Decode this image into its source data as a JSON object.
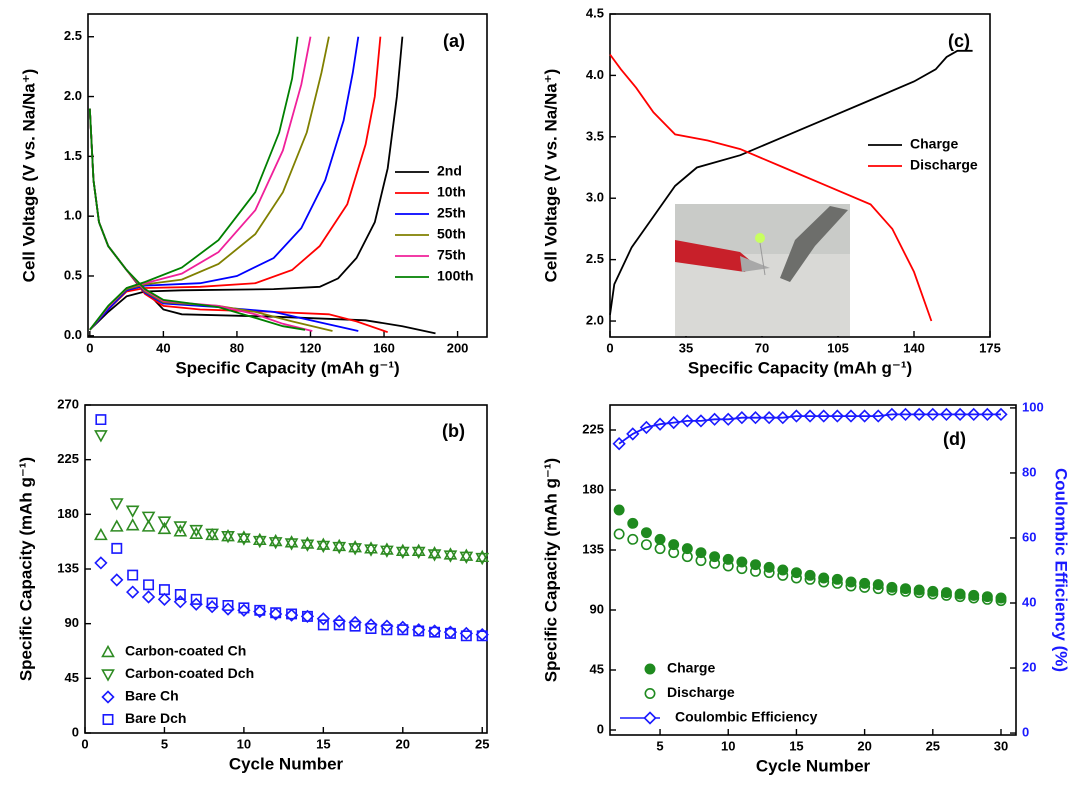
{
  "chart_data": [
    {
      "type": "line",
      "annotation": "(a)",
      "x_label": "Specific Capacity (mAh g⁻¹)",
      "y_label": "Cell Voltage (V vs. Na/Na⁺)",
      "xlim": [
        -1,
        216
      ],
      "ylim": [
        -0.01,
        2.69
      ],
      "xticks": [
        0,
        40,
        80,
        120,
        160,
        200
      ],
      "yticks": [
        {
          "value": 0,
          "label": "0.0"
        },
        0.5,
        {
          "value": 1,
          "label": "1.0"
        },
        1.5,
        {
          "value": 2,
          "label": "2.0"
        },
        2.5
      ],
      "legend": "right",
      "series": [
        {
          "name": "2nd",
          "color": "#000000",
          "x": [
            0,
            2,
            5,
            10,
            20,
            30,
            40,
            50,
            100,
            150,
            170,
            188,
            null,
            0,
            10,
            20,
            30,
            50,
            100,
            125,
            135,
            145,
            155,
            162,
            167,
            170
          ],
          "values": [
            1.9,
            1.3,
            0.95,
            0.75,
            0.55,
            0.38,
            0.22,
            0.18,
            0.16,
            0.13,
            0.08,
            0.02,
            null,
            0.05,
            0.2,
            0.33,
            0.37,
            0.38,
            0.39,
            0.41,
            0.48,
            0.65,
            0.95,
            1.4,
            2.0,
            2.5
          ]
        },
        {
          "name": "10th",
          "color": "#ff0000",
          "x": [
            0,
            2,
            5,
            10,
            20,
            30,
            40,
            60,
            100,
            130,
            145,
            162,
            null,
            0,
            10,
            20,
            30,
            60,
            90,
            110,
            125,
            140,
            150,
            155,
            158
          ],
          "values": [
            1.9,
            1.3,
            0.95,
            0.75,
            0.55,
            0.35,
            0.25,
            0.22,
            0.2,
            0.18,
            0.12,
            0.03,
            null,
            0.05,
            0.22,
            0.37,
            0.4,
            0.41,
            0.44,
            0.55,
            0.75,
            1.1,
            1.6,
            2.0,
            2.5
          ]
        },
        {
          "name": "25th",
          "color": "#0000ff",
          "x": [
            0,
            2,
            5,
            10,
            20,
            30,
            40,
            70,
            100,
            120,
            146,
            null,
            0,
            10,
            20,
            30,
            60,
            80,
            100,
            115,
            128,
            138,
            143,
            146
          ],
          "values": [
            1.9,
            1.3,
            0.95,
            0.75,
            0.55,
            0.36,
            0.27,
            0.24,
            0.2,
            0.13,
            0.04,
            null,
            0.05,
            0.22,
            0.38,
            0.42,
            0.44,
            0.5,
            0.65,
            0.9,
            1.3,
            1.8,
            2.2,
            2.5
          ]
        },
        {
          "name": "50th",
          "color": "#808000",
          "x": [
            0,
            2,
            5,
            10,
            20,
            30,
            40,
            70,
            90,
            110,
            132,
            null,
            0,
            10,
            20,
            30,
            50,
            70,
            90,
            105,
            118,
            126,
            130
          ],
          "values": [
            1.9,
            1.3,
            0.95,
            0.75,
            0.55,
            0.37,
            0.28,
            0.25,
            0.2,
            0.12,
            0.04,
            null,
            0.05,
            0.24,
            0.39,
            0.43,
            0.47,
            0.6,
            0.85,
            1.2,
            1.7,
            2.2,
            2.5
          ]
        },
        {
          "name": "75th",
          "color": "#f0209a",
          "x": [
            0,
            2,
            5,
            10,
            20,
            30,
            40,
            70,
            90,
            105,
            121,
            null,
            0,
            10,
            20,
            30,
            50,
            70,
            90,
            105,
            115,
            120
          ],
          "values": [
            1.9,
            1.3,
            0.95,
            0.75,
            0.55,
            0.38,
            0.29,
            0.25,
            0.18,
            0.1,
            0.04,
            null,
            0.05,
            0.24,
            0.4,
            0.44,
            0.52,
            0.7,
            1.05,
            1.55,
            2.1,
            2.5
          ]
        },
        {
          "name": "100th",
          "color": "#008000",
          "x": [
            0,
            2,
            5,
            10,
            20,
            30,
            40,
            70,
            90,
            105,
            117,
            null,
            0,
            10,
            20,
            30,
            50,
            70,
            90,
            103,
            110,
            113
          ],
          "values": [
            1.9,
            1.3,
            0.95,
            0.75,
            0.55,
            0.39,
            0.3,
            0.24,
            0.15,
            0.08,
            0.05,
            null,
            0.05,
            0.25,
            0.4,
            0.45,
            0.57,
            0.8,
            1.2,
            1.7,
            2.15,
            2.5
          ]
        }
      ]
    },
    {
      "type": "line",
      "annotation": "(c)",
      "x_label": "Specific Capacity (mAh g⁻¹)",
      "y_label": "Cell Voltage (V vs. Na/Na⁺)",
      "xlim": [
        0,
        175
      ],
      "ylim": [
        1.87,
        4.5
      ],
      "xticks": [
        0,
        35,
        70,
        105,
        140,
        175
      ],
      "yticks": [
        {
          "value": 2,
          "label": "2.0"
        },
        2.5,
        {
          "value": 3,
          "label": "3.0"
        },
        3.5,
        {
          "value": 4,
          "label": "4.0"
        },
        4.5
      ],
      "legend": "right",
      "series": [
        {
          "name": "Charge",
          "color": "#000000",
          "x": [
            0,
            2,
            10,
            20,
            30,
            40,
            60,
            80,
            100,
            120,
            140,
            150,
            155,
            160,
            167
          ],
          "values": [
            2.05,
            2.3,
            2.6,
            2.85,
            3.1,
            3.25,
            3.35,
            3.5,
            3.65,
            3.8,
            3.95,
            4.05,
            4.15,
            4.2,
            4.2
          ]
        },
        {
          "name": "Discharge",
          "color": "#ff0000",
          "x": [
            0,
            5,
            12,
            20,
            30,
            45,
            60,
            80,
            100,
            120,
            130,
            140,
            148
          ],
          "values": [
            4.17,
            4.05,
            3.9,
            3.7,
            3.52,
            3.47,
            3.4,
            3.25,
            3.1,
            2.95,
            2.75,
            2.4,
            2.0
          ]
        }
      ]
    },
    {
      "type": "scatter",
      "annotation": "(b)",
      "x_label": "Cycle Number",
      "y_label": "Specific Capacity (mAh g⁻¹)",
      "xlim": [
        0,
        25.3
      ],
      "ylim": [
        0,
        270
      ],
      "xticks": [
        0,
        5,
        10,
        15,
        20,
        25
      ],
      "yticks": [
        0,
        45,
        90,
        135,
        180,
        225,
        270
      ],
      "legend": "lower left",
      "x": [
        1,
        2,
        3,
        4,
        5,
        6,
        7,
        8,
        9,
        10,
        11,
        12,
        13,
        14,
        15,
        16,
        17,
        18,
        19,
        20,
        21,
        22,
        23,
        24,
        25
      ],
      "series": [
        {
          "name": "Carbon-coated Ch",
          "color": "#2e8b22",
          "marker": "triangle-up",
          "filled": false,
          "values": [
            163,
            170,
            171,
            170,
            168,
            166,
            164,
            163,
            162,
            161,
            159,
            158,
            157,
            156,
            155,
            154,
            153,
            152,
            151,
            150,
            150,
            148,
            147,
            146,
            145
          ]
        },
        {
          "name": "Carbon-coated Dch",
          "color": "#2e8b22",
          "marker": "triangle-down",
          "filled": false,
          "values": [
            245,
            189,
            183,
            178,
            174,
            170,
            167,
            164,
            162,
            160,
            158,
            157,
            156,
            155,
            154,
            153,
            152,
            151,
            150,
            149,
            149,
            147,
            146,
            145,
            144
          ]
        },
        {
          "name": "Bare Ch",
          "color": "#1a1aff",
          "marker": "diamond",
          "filled": false,
          "values": [
            140,
            126,
            116,
            112,
            110,
            108,
            106,
            104,
            102,
            101,
            100,
            98,
            97,
            96,
            94,
            92,
            91,
            89,
            88,
            87,
            85,
            84,
            83,
            82,
            81
          ]
        },
        {
          "name": "Bare Dch",
          "color": "#1a1aff",
          "marker": "square",
          "filled": false,
          "values": [
            258,
            152,
            130,
            122,
            118,
            114,
            110,
            107,
            105,
            103,
            101,
            99,
            98,
            96,
            89,
            89,
            88,
            86,
            85,
            85,
            84,
            83,
            82,
            80,
            80
          ]
        }
      ]
    },
    {
      "type": "scatter",
      "annotation": "(d)",
      "x_label": "Cycle Number",
      "y_label": "Specific Capacity (mAh g⁻¹)",
      "y2_label": "Coulombic Efficiency (%)",
      "xlim": [
        1.33,
        31.1
      ],
      "ylim": [
        -3.75,
        243.75
      ],
      "y2lim": [
        -0.6,
        100.9
      ],
      "xticks": [
        5,
        10,
        15,
        20,
        25,
        30
      ],
      "yticks": [
        0,
        45,
        90,
        135,
        180,
        225
      ],
      "y2ticks": [
        0,
        20,
        40,
        60,
        80,
        100
      ],
      "legend": "lower left",
      "x": [
        2,
        3,
        4,
        5,
        6,
        7,
        8,
        9,
        10,
        11,
        12,
        13,
        14,
        15,
        16,
        17,
        18,
        19,
        20,
        21,
        22,
        23,
        24,
        25,
        26,
        27,
        28,
        29,
        30
      ],
      "series": [
        {
          "name": "Charge",
          "color": "#1f8a1f",
          "marker": "circle",
          "filled": true,
          "values": [
            165,
            155,
            148,
            143,
            139,
            136,
            133,
            130,
            128,
            126,
            124,
            122,
            120,
            118,
            116,
            114,
            113,
            111,
            110,
            109,
            107,
            106,
            105,
            104,
            103,
            102,
            101,
            100,
            99
          ]
        },
        {
          "name": "Discharge",
          "color": "#1f8a1f",
          "marker": "circle",
          "filled": false,
          "values": [
            147,
            143,
            139,
            136,
            133,
            130,
            127,
            125,
            123,
            121,
            119,
            118,
            116,
            114,
            113,
            111,
            110,
            108,
            107,
            106,
            105,
            104,
            103,
            102,
            101,
            100,
            99,
            98,
            97
          ]
        },
        {
          "name": "Coulombic Efficiency",
          "color": "#1a1aff",
          "marker": "diamond",
          "filled": false,
          "line": true,
          "axis": "y2",
          "values": [
            89,
            92,
            94,
            95,
            95.5,
            96,
            96,
            96.5,
            96.5,
            97,
            97,
            97,
            97,
            97.5,
            97.5,
            97.5,
            97.5,
            97.5,
            97.5,
            97.5,
            98,
            98,
            98,
            98,
            98,
            98,
            98,
            98,
            98
          ]
        }
      ]
    }
  ]
}
